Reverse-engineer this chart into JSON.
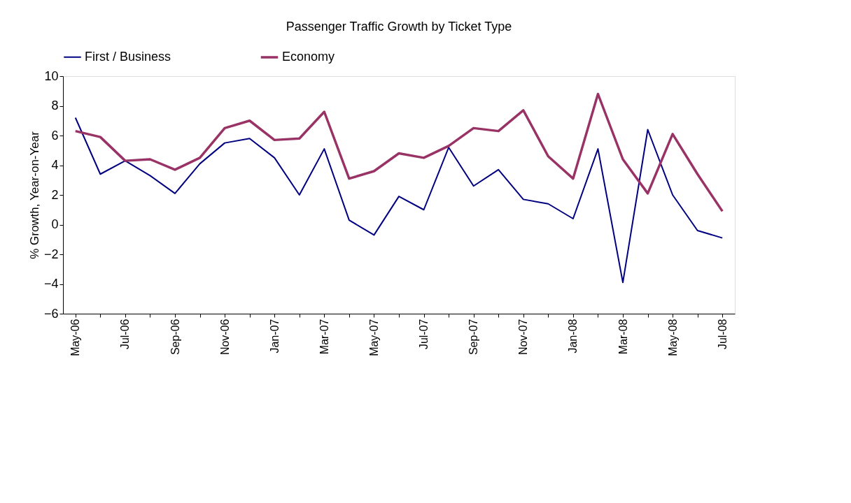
{
  "chart_data": {
    "type": "line",
    "title": "Passenger Traffic Growth by Ticket Type",
    "ylabel": "% Growth, Year-on-Year",
    "categories": [
      "May-06",
      null,
      "Jul-06",
      null,
      "Sep-06",
      null,
      "Nov-06",
      null,
      "Jan-07",
      null,
      "Mar-07",
      null,
      "May-07",
      null,
      "Jul-07",
      null,
      "Sep-07",
      null,
      "Nov-07",
      null,
      "Jan-08",
      null,
      "Mar-08",
      null,
      "May-08",
      null,
      "Jul-08"
    ],
    "series": [
      {
        "name": "First / Business",
        "color": "#000080",
        "values": [
          7.2,
          3.4,
          4.3,
          3.3,
          2.1,
          4.1,
          5.5,
          5.8,
          4.5,
          2.0,
          5.1,
          0.3,
          -0.7,
          1.9,
          1.0,
          5.2,
          2.6,
          3.7,
          1.7,
          1.4,
          0.4,
          5.1,
          -3.9,
          6.4,
          2.0,
          -0.4,
          -0.9
        ]
      },
      {
        "name": "Economy",
        "color": "#993366",
        "values": [
          6.3,
          5.9,
          4.3,
          4.4,
          3.7,
          4.5,
          6.5,
          7.0,
          5.7,
          5.8,
          7.6,
          3.1,
          3.6,
          4.8,
          4.5,
          5.3,
          6.5,
          6.3,
          7.7,
          4.6,
          3.1,
          8.8,
          4.4,
          2.1,
          6.1,
          3.4,
          0.9
        ]
      }
    ],
    "ylim": [
      -6,
      10
    ],
    "yticks": [
      -6,
      -4,
      -2,
      0,
      2,
      4,
      6,
      8,
      10
    ],
    "grid": false,
    "legend": "top",
    "marker": "none",
    "line_style": "solid"
  }
}
